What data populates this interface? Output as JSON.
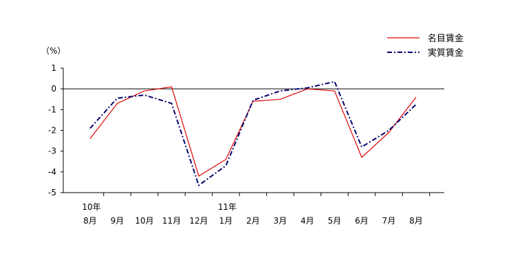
{
  "chart_data": {
    "type": "line",
    "unit_label": "（%）",
    "categories": [
      "8月",
      "9月",
      "10月",
      "11月",
      "12月",
      "1月",
      "2月",
      "3月",
      "4月",
      "5月",
      "6月",
      "7月",
      "8月"
    ],
    "year_labels": [
      {
        "index": 0,
        "label": "10年"
      },
      {
        "index": 5,
        "label": "11年"
      }
    ],
    "ylim": [
      -5,
      1
    ],
    "yticks": [
      1,
      0,
      -1,
      -2,
      -3,
      -4,
      -5
    ],
    "zero_line": true,
    "grid": false,
    "legend_position": "top-right",
    "series": [
      {
        "name": "名目賃金",
        "color": "#e00000",
        "dash": "solid",
        "values": [
          -2.4,
          -0.7,
          -0.1,
          0.1,
          -4.2,
          -3.4,
          -0.6,
          -0.5,
          0.0,
          -0.1,
          -3.3,
          -2.1,
          -0.4
        ]
      },
      {
        "name": "実質賃金",
        "color": "#00006e",
        "dash": "dashdot",
        "values": [
          -1.9,
          -0.45,
          -0.3,
          -0.7,
          -4.65,
          -3.7,
          -0.55,
          -0.1,
          0.05,
          0.35,
          -2.8,
          -2.0,
          -0.75
        ]
      }
    ]
  }
}
